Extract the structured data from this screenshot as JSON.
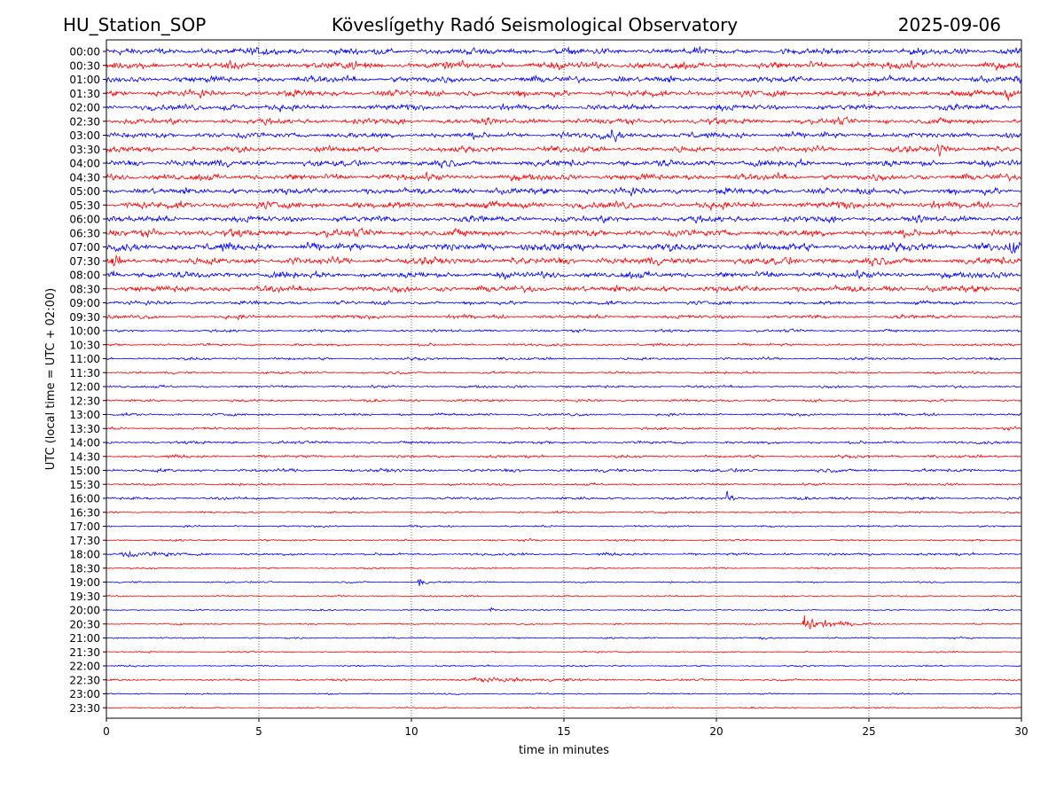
{
  "header": {
    "station": "HU_Station_SOP",
    "observatory": "Köveslígethy Radó Seismological Observatory",
    "date": "2025-09-06"
  },
  "chart_data": {
    "type": "line",
    "title": "Köveslígethy Radó Seismological Observatory",
    "xlabel": "time in minutes",
    "ylabel": "UTC (local time = UTC + 02:00)",
    "xlim": [
      0,
      30
    ],
    "xticks": [
      0,
      5,
      10,
      15,
      20,
      25,
      30
    ],
    "grid": "vertical dotted lines at x ticks",
    "rows": [
      "00:00",
      "00:30",
      "01:00",
      "01:30",
      "02:00",
      "02:30",
      "03:00",
      "03:30",
      "04:00",
      "04:30",
      "05:00",
      "05:30",
      "06:00",
      "06:30",
      "07:00",
      "07:30",
      "08:00",
      "08:30",
      "09:00",
      "09:30",
      "10:00",
      "10:30",
      "11:00",
      "11:30",
      "12:00",
      "12:30",
      "13:00",
      "13:30",
      "14:00",
      "14:30",
      "15:00",
      "15:30",
      "16:00",
      "16:30",
      "17:00",
      "17:30",
      "18:00",
      "18:30",
      "19:00",
      "19:30",
      "20:00",
      "20:30",
      "21:00",
      "21:30",
      "22:00",
      "22:30",
      "23:00",
      "23:30"
    ],
    "colors": [
      "#0000ff",
      "#ff0000"
    ],
    "noise_amplitude": [
      0.5,
      0.55,
      0.5,
      0.5,
      0.45,
      0.45,
      0.45,
      0.45,
      0.5,
      0.5,
      0.5,
      0.55,
      0.5,
      0.55,
      0.6,
      0.55,
      0.5,
      0.5,
      0.3,
      0.3,
      0.2,
      0.2,
      0.2,
      0.18,
      0.2,
      0.2,
      0.2,
      0.2,
      0.22,
      0.22,
      0.25,
      0.18,
      0.22,
      0.15,
      0.15,
      0.15,
      0.2,
      0.12,
      0.12,
      0.12,
      0.12,
      0.12,
      0.12,
      0.12,
      0.12,
      0.15,
      0.12,
      0.12
    ],
    "events": [
      {
        "row": "00:00",
        "minute": 5.2,
        "amplitude": 0.8,
        "duration": 0.4
      },
      {
        "row": "00:30",
        "minute": 8.0,
        "amplitude": 1.0,
        "duration": 0.3
      },
      {
        "row": "01:30",
        "minute": 29.5,
        "amplitude": 0.9,
        "duration": 0.6
      },
      {
        "row": "02:00",
        "minute": 3.8,
        "amplitude": 0.8,
        "duration": 1.0
      },
      {
        "row": "03:00",
        "minute": 16.6,
        "amplitude": 1.1,
        "duration": 0.8
      },
      {
        "row": "03:30",
        "minute": 27.3,
        "amplitude": 0.8,
        "duration": 0.8
      },
      {
        "row": "07:00",
        "minute": 29.6,
        "amplitude": 0.9,
        "duration": 0.6
      },
      {
        "row": "07:30",
        "minute": 0.2,
        "amplitude": 1.0,
        "duration": 0.5
      },
      {
        "row": "08:00",
        "minute": 0.2,
        "amplitude": 0.9,
        "duration": 0.5
      },
      {
        "row": "16:00",
        "minute": 20.35,
        "amplitude": 1.3,
        "duration": 0.5
      },
      {
        "row": "18:00",
        "minute": 0.5,
        "amplitude": 0.6,
        "duration": 2.8
      },
      {
        "row": "19:00",
        "minute": 10.25,
        "amplitude": 1.5,
        "duration": 0.5
      },
      {
        "row": "20:00",
        "minute": 12.6,
        "amplitude": 0.6,
        "duration": 0.4
      },
      {
        "row": "20:30",
        "minute": 22.85,
        "amplitude": 1.8,
        "duration": 2.2
      },
      {
        "row": "21:00",
        "minute": 21.4,
        "amplitude": 0.5,
        "duration": 0.6
      },
      {
        "row": "22:30",
        "minute": 12.0,
        "amplitude": 0.5,
        "duration": 5.0
      }
    ]
  }
}
